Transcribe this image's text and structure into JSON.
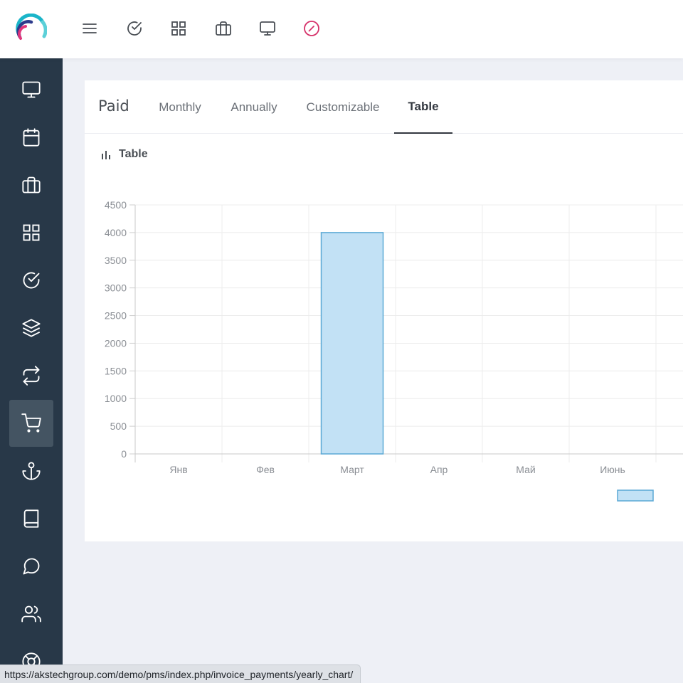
{
  "colors": {
    "sidebar_bg": "#283848",
    "sidebar_active": "#445462",
    "accent_pink": "#d6326a",
    "bar_fill": "#c2e1f5",
    "bar_stroke": "#5ba9d5"
  },
  "topbar": {
    "icons": [
      "menu-icon",
      "check-circle-icon",
      "grid-icon",
      "briefcase-icon",
      "monitor-icon",
      "dashboard-gauge-icon"
    ]
  },
  "sidebar": {
    "items": [
      {
        "icon": "monitor-icon"
      },
      {
        "icon": "calendar-icon"
      },
      {
        "icon": "briefcase-icon"
      },
      {
        "icon": "grid-icon"
      },
      {
        "icon": "check-circle-icon"
      },
      {
        "icon": "layers-icon"
      },
      {
        "icon": "repeat-icon"
      },
      {
        "icon": "cart-icon",
        "active": true
      },
      {
        "icon": "anchor-icon"
      },
      {
        "icon": "book-icon"
      },
      {
        "icon": "message-icon"
      },
      {
        "icon": "users-icon"
      },
      {
        "icon": "lifebuoy-icon"
      }
    ]
  },
  "card": {
    "title": "Paid",
    "tabs": [
      {
        "label": "Monthly"
      },
      {
        "label": "Annually"
      },
      {
        "label": "Customizable"
      },
      {
        "label": "Table",
        "active": true
      }
    ],
    "chart_title": "Table"
  },
  "chart_data": {
    "type": "bar",
    "categories": [
      "Янв",
      "Фев",
      "Март",
      "Апр",
      "Май",
      "Июнь"
    ],
    "series": [
      {
        "values": [
          0,
          0,
          4000,
          0,
          0,
          0
        ]
      }
    ],
    "yticks": [
      "0",
      "500",
      "1000",
      "1500",
      "2000",
      "2500",
      "3000",
      "3500",
      "4000",
      "4500"
    ],
    "ylim": [
      0,
      4500
    ],
    "grid": true,
    "legend": "bottom-right"
  },
  "statusbar": {
    "url": "https://akstechgroup.com/demo/pms/index.php/invoice_payments/yearly_chart/"
  }
}
